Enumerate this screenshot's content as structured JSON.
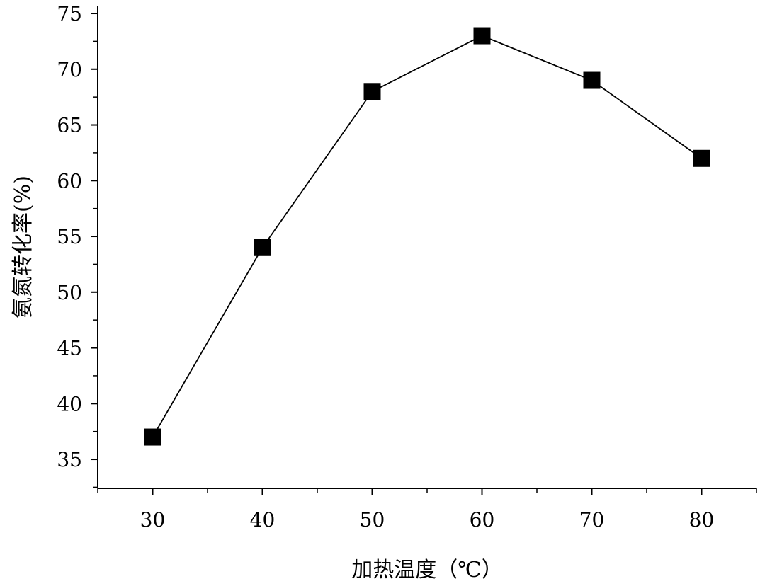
{
  "chart_data": {
    "type": "line",
    "title": "",
    "xlabel": "加热温度（℃）",
    "ylabel": "氨氮转化率(%)",
    "x": [
      30,
      40,
      50,
      60,
      70,
      80
    ],
    "series": [
      {
        "values": [
          37,
          54,
          68,
          73,
          69,
          62
        ]
      }
    ],
    "xlim": [
      25,
      85
    ],
    "ylim": [
      32.4,
      75.7
    ],
    "xticks": [
      "30",
      "40",
      "50",
      "60",
      "70",
      "80"
    ],
    "yticks": [
      "35",
      "40",
      "45",
      "50",
      "55",
      "60",
      "65",
      "70",
      "75"
    ],
    "marker": "square",
    "line_color": "#000000",
    "marker_color": "#000000",
    "grid": false,
    "legend": "none"
  }
}
